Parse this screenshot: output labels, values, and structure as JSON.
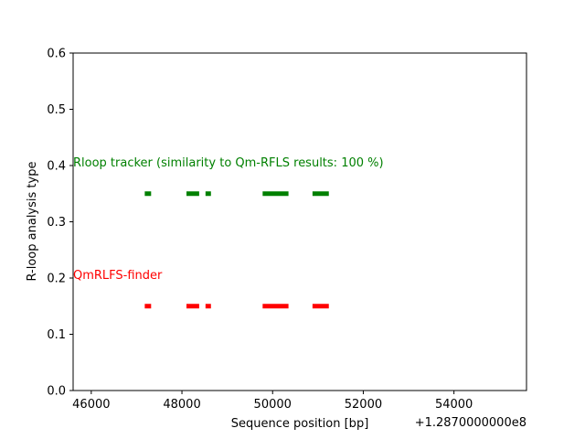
{
  "chart_data": {
    "type": "scatter",
    "title": "",
    "xlabel": "Sequence position [bp]",
    "ylabel": "R-loop analysis type",
    "x_offset_label": "+1.2870000000e8",
    "xlim": [
      45600,
      55600
    ],
    "ylim": [
      0,
      0.6
    ],
    "x_ticks": [
      46000,
      48000,
      50000,
      52000,
      54000
    ],
    "x_tick_labels": [
      "46000",
      "48000",
      "50000",
      "52000",
      "54000"
    ],
    "y_ticks": [
      0.0,
      0.1,
      0.2,
      0.3,
      0.4,
      0.5,
      0.6
    ],
    "y_tick_labels": [
      "0.0",
      "0.1",
      "0.2",
      "0.3",
      "0.4",
      "0.5",
      "0.6"
    ],
    "grid": false,
    "series": [
      {
        "name": "Rloop tracker (similarity to Qm-RFLS results: 100 %)",
        "color": "#008000",
        "y": 0.35,
        "segments": [
          [
            47180,
            47320
          ],
          [
            48100,
            48380
          ],
          [
            48520,
            48640
          ],
          [
            49780,
            50350
          ],
          [
            50880,
            51240
          ]
        ]
      },
      {
        "name": "QmRLFS-finder",
        "color": "#ff0000",
        "y": 0.15,
        "segments": [
          [
            47180,
            47320
          ],
          [
            48100,
            48380
          ],
          [
            48520,
            48640
          ],
          [
            49780,
            50350
          ],
          [
            50880,
            51240
          ]
        ]
      }
    ],
    "annotations": [
      {
        "text": "Rloop tracker (similarity to Qm-RFLS results: 100 %)",
        "x": 45600,
        "y": 0.4,
        "color": "#008000"
      },
      {
        "text": "QmRLFS-finder",
        "x": 45600,
        "y": 0.2,
        "color": "#ff0000"
      }
    ]
  }
}
